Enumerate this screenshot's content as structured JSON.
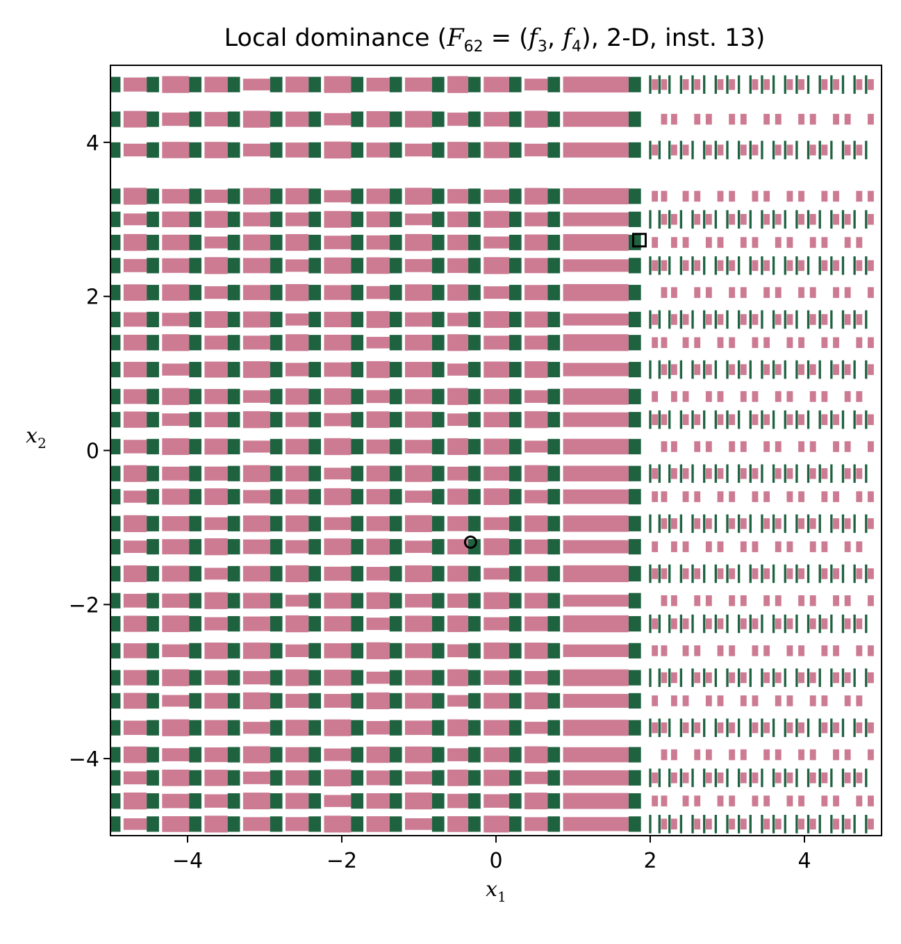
{
  "chart_data": {
    "type": "heatmap",
    "title": "Local dominance (F₆₂ = (f₃, f₄), 2-D, inst. 13)",
    "title_parts": {
      "prefix": "Local dominance (",
      "F": "F",
      "F_sub": "62",
      "eq": " = (",
      "f1": "f",
      "f1_sub": "3",
      "comma": ", ",
      "f2": "f",
      "f2_sub": "4",
      "suffix": "), 2-D, inst. 13)"
    },
    "xlabel": {
      "main": "x",
      "sub": "1"
    },
    "ylabel": {
      "main": "x",
      "sub": "2"
    },
    "xlim": [
      -5,
      5
    ],
    "ylim": [
      -5,
      5
    ],
    "xticks": [
      -4,
      -2,
      0,
      2,
      4
    ],
    "yticks": [
      -4,
      -2,
      0,
      2,
      4
    ],
    "xtick_labels": [
      "−4",
      "−2",
      "0",
      "2",
      "4"
    ],
    "ytick_labels": [
      "−4",
      "−2",
      "0",
      "2",
      "4"
    ],
    "grid": false,
    "colors": {
      "pink_region": "#cc7b93",
      "green_region": "#1e6240",
      "background": "#ffffff"
    },
    "markers": [
      {
        "shape": "circle",
        "x": -0.33,
        "y": -1.19
      },
      {
        "shape": "square",
        "x": 1.86,
        "y": 2.73
      }
    ],
    "pattern": {
      "transition_x": 1.85,
      "left_columns_x": [
        -4.95,
        -4.45,
        -3.9,
        -3.4,
        -2.85,
        -2.35,
        -1.8,
        -1.3,
        -0.75,
        -0.28,
        0.25,
        0.75,
        1.8
      ],
      "right_columns_x": [
        2.0,
        2.12,
        2.25,
        2.4,
        2.55,
        2.7,
        2.85,
        3.0,
        3.15,
        3.3,
        3.45,
        3.6,
        3.75,
        3.9,
        4.05,
        4.2,
        4.35,
        4.5,
        4.65,
        4.8
      ],
      "band_centers_y": [
        -4.85,
        -4.55,
        -4.25,
        -3.95,
        -3.6,
        -3.25,
        -2.95,
        -2.6,
        -2.25,
        -1.95,
        -1.6,
        -1.25,
        -0.95,
        -0.6,
        -0.3,
        0.05,
        0.4,
        0.7,
        1.05,
        1.4,
        1.7,
        2.05,
        2.4,
        2.7,
        3.0,
        3.3,
        3.9,
        4.3,
        4.75
      ],
      "gap_bands_y": [
        [
          3.35,
          3.55
        ],
        [
          4.45,
          4.6
        ]
      ]
    }
  }
}
